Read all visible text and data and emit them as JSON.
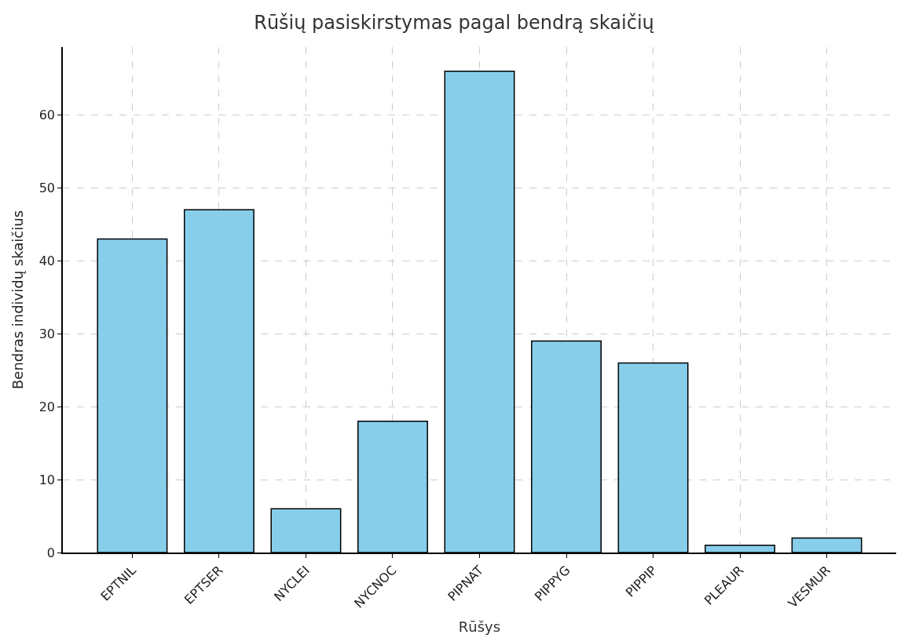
{
  "chart_data": {
    "type": "bar",
    "title": "Rūšių pasiskirstymas pagal bendrą skaičių",
    "xlabel": "Rūšys",
    "ylabel": "Bendras individų skaičius",
    "categories": [
      "EPTNIL",
      "EPTSER",
      "NYCLEI",
      "NYCNOC",
      "PIPNAT",
      "PIPPYG",
      "PIPPIP",
      "PLEAUR",
      "VESMUR"
    ],
    "values": [
      43,
      47,
      6,
      18,
      66,
      29,
      26,
      1,
      2
    ],
    "color": "#87ceeb",
    "ylim": [
      0,
      69.3
    ],
    "yticks": [
      0,
      10,
      20,
      30,
      40,
      50,
      60
    ],
    "grid": true
  }
}
